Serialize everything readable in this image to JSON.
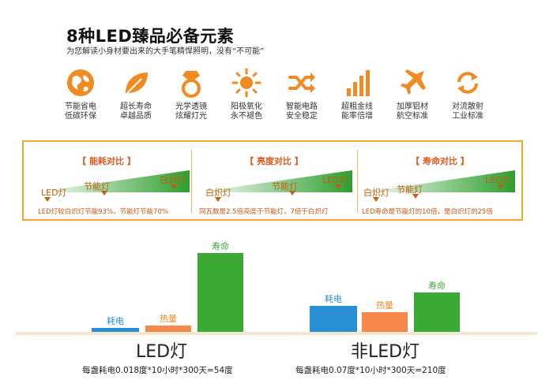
{
  "header": {
    "title": "8种LED臻品必备元素",
    "subtitle": "为您解读小身材要出来的大手笔精悍照明，没有“不可能”"
  },
  "features": [
    {
      "icon": "globe-icon",
      "line1": "节能省电",
      "line2": "低碳环保"
    },
    {
      "icon": "leaf-icon",
      "line1": "超长寿命",
      "line2": "卓越品质"
    },
    {
      "icon": "diamond-ring-icon",
      "line1": "光学透镜",
      "line2": "炫耀灯光"
    },
    {
      "icon": "sun-icon",
      "line1": "阳极氧化",
      "line2": "永不褪色"
    },
    {
      "icon": "shuffle-icon",
      "line1": "智能电路",
      "line2": "安全稳定"
    },
    {
      "icon": "bars-icon",
      "line1": "超粗金线",
      "line2": "能率倍增"
    },
    {
      "icon": "airplane-icon",
      "line1": "加厚铝材",
      "line2": "航空标准"
    },
    {
      "icon": "cycle-icon",
      "line1": "对流散射",
      "line2": "工业标准"
    }
  ],
  "comparisons": [
    {
      "title": "【 能耗对比 】",
      "labels": [
        "LED灯",
        "节能灯",
        "白炽灯"
      ],
      "note": "LED灯较白炽灯节能93%，节能灯节能70%"
    },
    {
      "title": "【 亮度对比 】",
      "labels": [
        "白炽灯",
        "节能灯",
        "LED灯"
      ],
      "note": "同瓦数是2.5倍亮度于节能灯，7倍于白炽灯"
    },
    {
      "title": "【 寿命对比 】",
      "labels": [
        "白炽灯",
        "节能灯",
        "LED灯"
      ],
      "note": "LED寿命是节能灯的10倍，是白炽灯的25倍"
    }
  ],
  "bar_groups": [
    {
      "name": "LED灯",
      "formula": "每盏耗电0.018度*10小时*300天=54度",
      "bars": [
        {
          "label": "耗电",
          "level": 0.05
        },
        {
          "label": "热量",
          "level": 0.08
        },
        {
          "label": "寿命",
          "level": 1.0
        }
      ]
    },
    {
      "name": "非LED灯",
      "formula": "每盏耗电0.07度*10小时*300天=210度",
      "bars": [
        {
          "label": "耗电",
          "level": 0.33
        },
        {
          "label": "热量",
          "level": 0.25
        },
        {
          "label": "寿命",
          "level": 0.5
        }
      ]
    }
  ],
  "colors": {
    "orange": "#f28a22",
    "green": "#3aaa35",
    "blue": "#2a90d6",
    "lightorange": "#f5884a",
    "accent": "#e05a1e"
  }
}
